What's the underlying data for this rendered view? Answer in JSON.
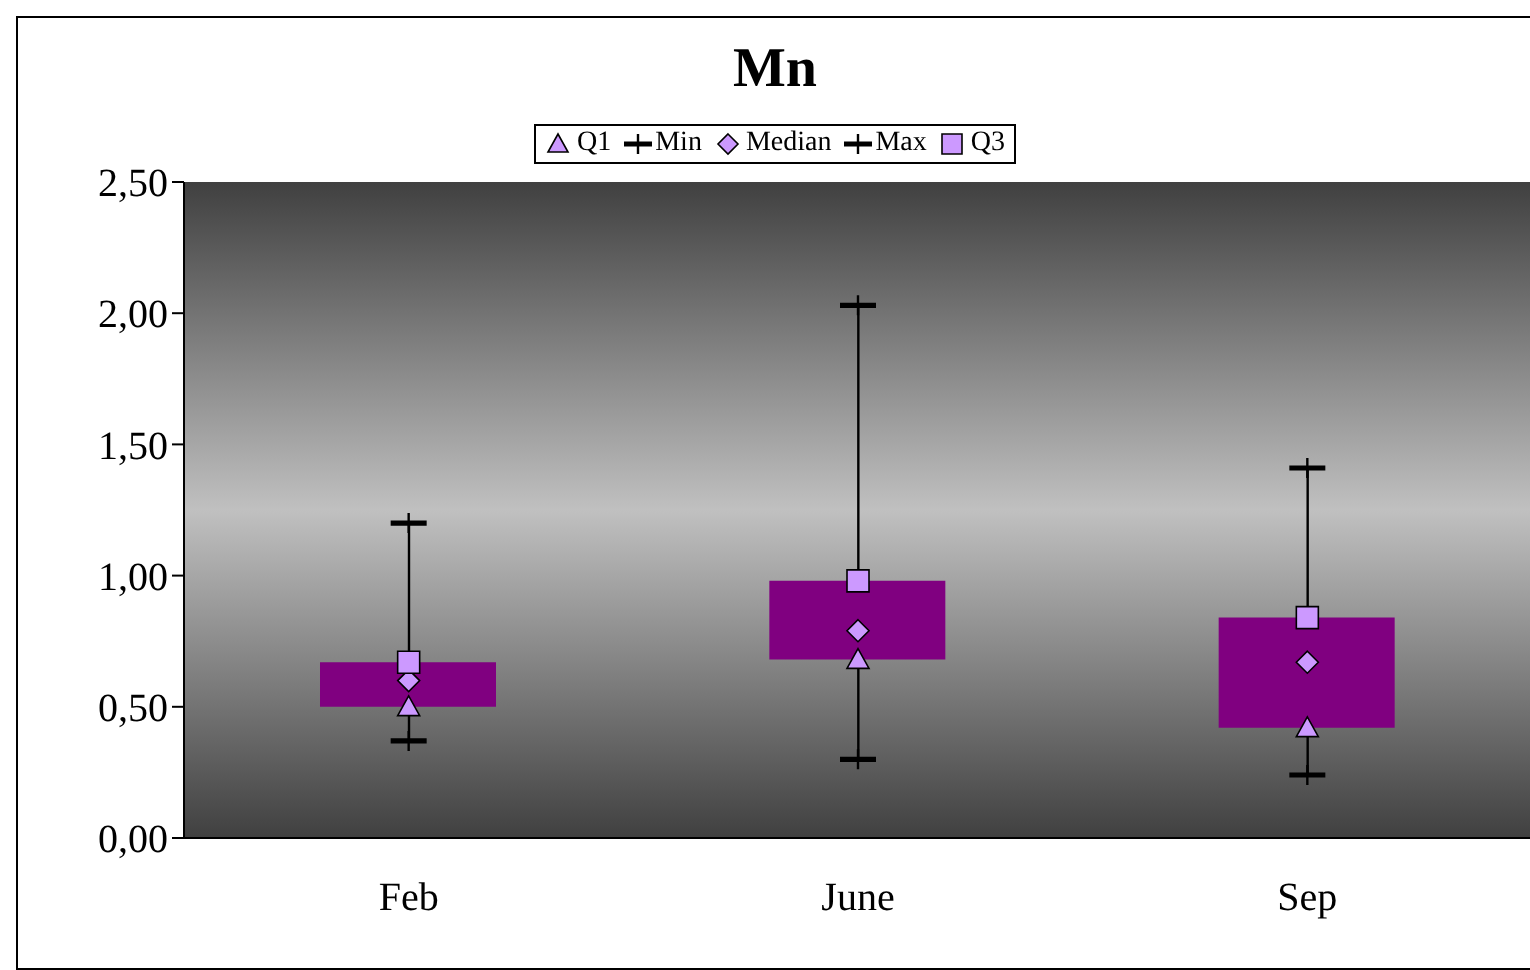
{
  "chart_data": {
    "type": "box",
    "title": "Mn",
    "categories": [
      "Feb",
      "June",
      "Sep"
    ],
    "boxes": [
      {
        "low": 0.37,
        "q1": 0.5,
        "q3": 0.67,
        "high": 1.2
      },
      {
        "low": 0.3,
        "q1": 0.68,
        "q3": 0.98,
        "high": 2.03
      },
      {
        "low": 0.24,
        "q1": 0.42,
        "q3": 0.84,
        "high": 1.41
      }
    ],
    "color": "#800080",
    "series": [
      {
        "name": "Q1",
        "type": "scatter",
        "marker": "triangle",
        "color": "#cc99ff",
        "values": [
          0.5,
          0.68,
          0.42
        ]
      },
      {
        "name": "Min",
        "type": "scatter",
        "color": "#000000",
        "values": [
          0.37,
          0.3,
          0.24
        ]
      },
      {
        "name": "Median",
        "type": "scatter",
        "marker": "diamond",
        "color": "#cc99ff",
        "values": [
          0.6,
          0.79,
          0.67
        ]
      },
      {
        "name": "Max",
        "type": "scatter",
        "color": "#000000",
        "values": [
          1.2,
          2.03,
          1.41
        ]
      },
      {
        "name": "Q3",
        "type": "scatter",
        "marker": "square",
        "color": "#cc99ff",
        "values": [
          0.67,
          0.98,
          0.84
        ]
      }
    ],
    "ylim": [
      0,
      2.5
    ],
    "yticks": [
      {
        "value": 0,
        "label": "0,00"
      },
      {
        "value": 0.5,
        "label": "0,50"
      },
      {
        "value": 1,
        "label": "1,00"
      },
      {
        "value": 1.5,
        "label": "1,50"
      },
      {
        "value": 2,
        "label": "2,00"
      },
      {
        "value": 2.5,
        "label": "2,50"
      }
    ],
    "legend": "top",
    "grid": false
  }
}
